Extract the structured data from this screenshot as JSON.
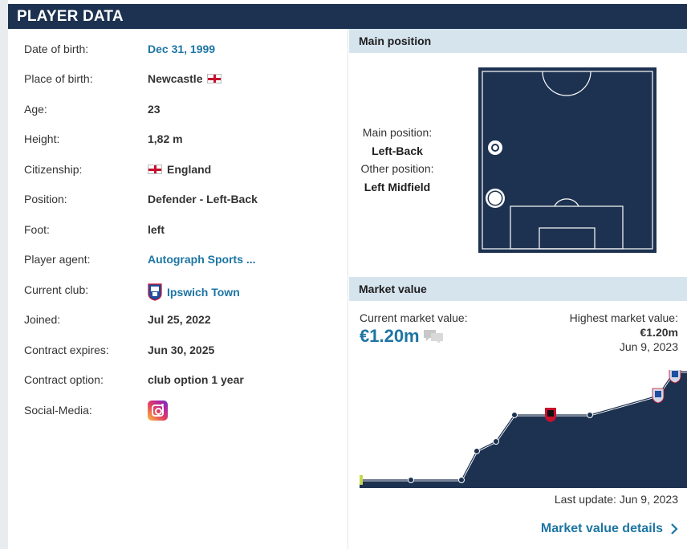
{
  "header": {
    "title": "PLAYER DATA"
  },
  "player": {
    "rows": [
      {
        "label": "Date of birth:",
        "value": "Dec 31, 1999"
      },
      {
        "label": "Place of birth:",
        "value": "Newcastle"
      },
      {
        "label": "Age:",
        "value": "23"
      },
      {
        "label": "Height:",
        "value": "1,82 m"
      },
      {
        "label": "Citizenship:",
        "value": "England"
      },
      {
        "label": "Position:",
        "value": "Defender - Left-Back"
      },
      {
        "label": "Foot:",
        "value": "left"
      },
      {
        "label": "Player agent:",
        "value": "Autograph Sports ..."
      },
      {
        "label": "Current club:",
        "value": "Ipswich Town"
      },
      {
        "label": "Joined:",
        "value": "Jul 25, 2022"
      },
      {
        "label": "Contract expires:",
        "value": "Jun 30, 2025"
      },
      {
        "label": "Contract option:",
        "value": "club option 1 year"
      },
      {
        "label": "Social-Media:",
        "value": ""
      }
    ],
    "icons": {
      "birth_flag": "england-flag-icon",
      "citizenship_flag": "england-flag-icon",
      "club_crest": "ipswich-town-crest-icon",
      "social": "instagram-icon"
    }
  },
  "position": {
    "heading": "Main position",
    "main_label": "Main position:",
    "main_value": "Left-Back",
    "other_label": "Other position:",
    "other_value": "Left Midfield"
  },
  "market": {
    "heading": "Market value",
    "current_label": "Current market value:",
    "current_value": "€1.20m",
    "highest_label": "Highest market value:",
    "highest_value": "€1.20m",
    "highest_date": "Jun 9, 2023",
    "last_update": "Last update: Jun 9, 2023",
    "details_link": "Market value details"
  },
  "colors": {
    "navy": "#1d3250",
    "link": "#1d75a3",
    "section": "#d6e4ee"
  }
}
